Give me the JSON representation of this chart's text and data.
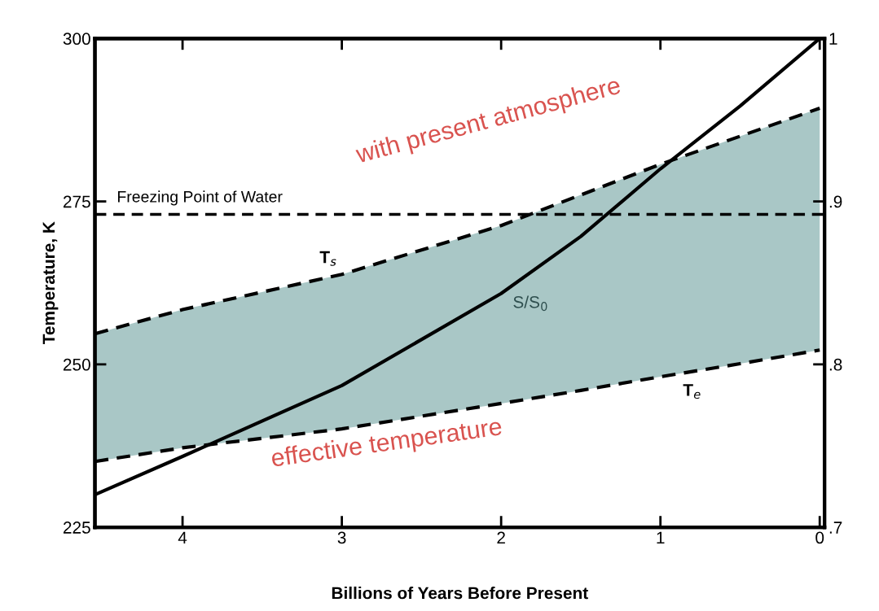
{
  "chart_data": {
    "type": "line",
    "xlabel": "Billions of Years Before Present",
    "ylabel": "Temperature, K",
    "x": [
      4.55,
      4,
      3,
      2,
      1.5,
      1,
      0.5,
      0
    ],
    "xlim": [
      4.55,
      -0.03
    ],
    "xticks": [
      4,
      3,
      2,
      1,
      0
    ],
    "ylim": [
      225,
      300
    ],
    "yticks": [
      225,
      250,
      275,
      300
    ],
    "y2lim": [
      0.7,
      1.0
    ],
    "y2ticks": [
      {
        "value": 0.7,
        "label": ".7"
      },
      {
        "value": 0.8,
        "label": ".8"
      },
      {
        "value": 0.9,
        "label": ".9"
      },
      1
    ],
    "line_style": "dashed",
    "series": [
      {
        "name": "T$_{s}$",
        "color": "#000000",
        "values": [
          254.7,
          258.4,
          263.8,
          271.3,
          276.0,
          280.7,
          285.0,
          289.3
        ],
        "lower": [
          235.1,
          237.2,
          240.1,
          244.0,
          246.0,
          248.1,
          250.1,
          252.2
        ],
        "upper": [
          254.7,
          258.4,
          263.8,
          271.3,
          276.0,
          280.7,
          285.0,
          289.3
        ]
      },
      {
        "name": "T$_{e}$",
        "color": "#000000",
        "values": [
          235.1,
          237.2,
          240.1,
          244.0,
          246.0,
          248.1,
          250.1,
          252.2
        ]
      },
      {
        "name": "S/S$_{0}$",
        "color": "#000000",
        "axis": "y2",
        "line_style": "solid",
        "values": [
          0.72,
          0.7435,
          0.787,
          0.8435,
          0.8785,
          0.92,
          0.9585,
          1.0
        ]
      }
    ],
    "ref_lines": [
      {
        "axis": "y",
        "value": 273,
        "label": "Freezing Point of Water",
        "color": "#000000",
        "line_style": "dashed"
      }
    ],
    "annotations": [
      "with present atmosphere",
      "effective temperature"
    ],
    "grid": false,
    "legend": false
  }
}
